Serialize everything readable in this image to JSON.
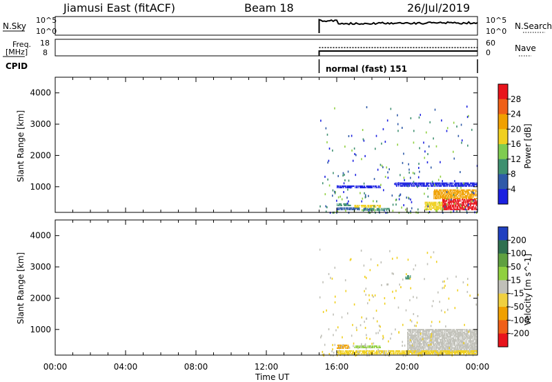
{
  "header": {
    "station": "Jiamusi East (fitACF)",
    "beam": "Beam 18",
    "date": "26/Jul/2019"
  },
  "aux_panels": {
    "nsky_label": "N.Sky",
    "nsearch_label": "N.Search",
    "nsky_ticks": [
      "10^5",
      "10^0"
    ],
    "right_nsky_ticks": [
      "10^5",
      "10^0"
    ],
    "freq_label_1": "Freq.",
    "freq_label_2": "[MHz]",
    "freq_ticks": [
      "18",
      "8"
    ],
    "nave_label": "Nave",
    "nave_ticks": [
      "60",
      "0"
    ],
    "cpid_label": "CPID",
    "cpid_text": "normal (fast) 151",
    "data_start_hour": 15.0
  },
  "chart_data": [
    {
      "type": "heatmap",
      "name": "power",
      "ylabel": "Slant Range [km]",
      "xlabel": "",
      "ylim": [
        180,
        4500
      ],
      "xlim": [
        0,
        24
      ],
      "yticks": [
        1000,
        2000,
        3000,
        4000
      ],
      "colorbar_label": "Power [dB]",
      "colorbar_ticks": [
        "28",
        "24",
        "20",
        "16",
        "12",
        "8",
        "4"
      ],
      "colorbar_colors": [
        "#e8141c",
        "#f06018",
        "#f0a000",
        "#f0d020",
        "#7fcc50",
        "#3f9070",
        "#2f5aa8",
        "#1a20e0"
      ],
      "echo_regions": [
        {
          "t0": 16.0,
          "t1": 17.3,
          "r0": 250,
          "r1": 320,
          "level": "blue"
        },
        {
          "t0": 16.0,
          "t1": 16.8,
          "r0": 380,
          "r1": 460,
          "level": "green"
        },
        {
          "t0": 17.0,
          "t1": 18.5,
          "r0": 330,
          "r1": 420,
          "level": "yellow"
        },
        {
          "t0": 17.5,
          "t1": 19.0,
          "r0": 230,
          "r1": 300,
          "level": "green"
        },
        {
          "t0": 16.0,
          "t1": 18.5,
          "r0": 950,
          "r1": 1000,
          "level": "darkblue"
        },
        {
          "t0": 19.3,
          "t1": 24.0,
          "r0": 1000,
          "r1": 1100,
          "level": "darkblue"
        },
        {
          "t0": 21.5,
          "t1": 24.0,
          "r0": 600,
          "r1": 900,
          "level": "orange"
        },
        {
          "t0": 22.0,
          "t1": 24.0,
          "r0": 250,
          "r1": 600,
          "level": "red"
        },
        {
          "t0": 21.0,
          "t1": 22.0,
          "r0": 250,
          "r1": 500,
          "level": "yellow"
        }
      ]
    },
    {
      "type": "heatmap",
      "name": "velocity",
      "ylabel": "Slant Range [km]",
      "xlabel": "Time UT",
      "ylim": [
        180,
        4500
      ],
      "xlim": [
        0,
        24
      ],
      "yticks": [
        1000,
        2000,
        3000,
        4000
      ],
      "xticks": [
        "00:00",
        "04:00",
        "08:00",
        "12:00",
        "16:00",
        "20:00",
        "00:00"
      ],
      "colorbar_label": "Velocity [m s^-1]",
      "colorbar_ticks": [
        "200",
        "100",
        "50",
        "15",
        "-15",
        "-50",
        "-100",
        "-200"
      ],
      "colorbar_colors": [
        "#2040c0",
        "#2f7050",
        "#5fa040",
        "#90d040",
        "#c0c0b8",
        "#f0d040",
        "#f0a000",
        "#f06018",
        "#e8141c"
      ],
      "echo_regions": [
        {
          "t0": 20.0,
          "t1": 24.0,
          "r0": 250,
          "r1": 1000,
          "level": "gray"
        },
        {
          "t0": 16.0,
          "t1": 16.7,
          "r0": 380,
          "r1": 480,
          "level": "orange"
        },
        {
          "t0": 17.0,
          "t1": 18.5,
          "r0": 400,
          "r1": 480,
          "level": "lightgreen"
        },
        {
          "t0": 16.0,
          "t1": 24.0,
          "r0": 200,
          "r1": 300,
          "level": "yellow"
        },
        {
          "t0": 19.9,
          "t1": 20.2,
          "r0": 2600,
          "r1": 2700,
          "level": "green"
        }
      ]
    }
  ]
}
